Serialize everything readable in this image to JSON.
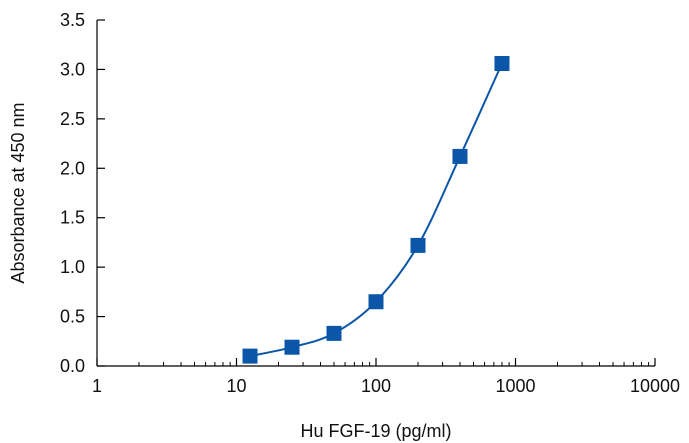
{
  "chart_data": {
    "type": "scatter",
    "title": "",
    "xlabel": "Hu FGF-19 (pg/ml)",
    "ylabel": "Absorbance at 450 nm",
    "x_scale": "log",
    "xlim": [
      1,
      10000
    ],
    "ylim": [
      0,
      3.5
    ],
    "x_ticks": [
      1,
      10,
      100,
      1000,
      10000
    ],
    "x_tick_labels": [
      "1",
      "10",
      "100",
      "1000",
      "10000"
    ],
    "y_ticks": [
      0,
      0.5,
      1,
      1.5,
      2,
      2.5,
      3,
      3.5
    ],
    "y_tick_labels": [
      "0.0",
      "0.5",
      "1.0",
      "1.5",
      "2.0",
      "2.5",
      "3.0",
      "3.5"
    ],
    "grid": false,
    "legend": "none",
    "color": "#0b56a8",
    "marker": "square",
    "fit_line": "smooth curve through points",
    "points": [
      {
        "x": 12.5,
        "y": 0.1
      },
      {
        "x": 25,
        "y": 0.19
      },
      {
        "x": 50,
        "y": 0.33
      },
      {
        "x": 100,
        "y": 0.65
      },
      {
        "x": 200,
        "y": 1.22
      },
      {
        "x": 400,
        "y": 2.12
      },
      {
        "x": 800,
        "y": 3.06
      }
    ]
  }
}
